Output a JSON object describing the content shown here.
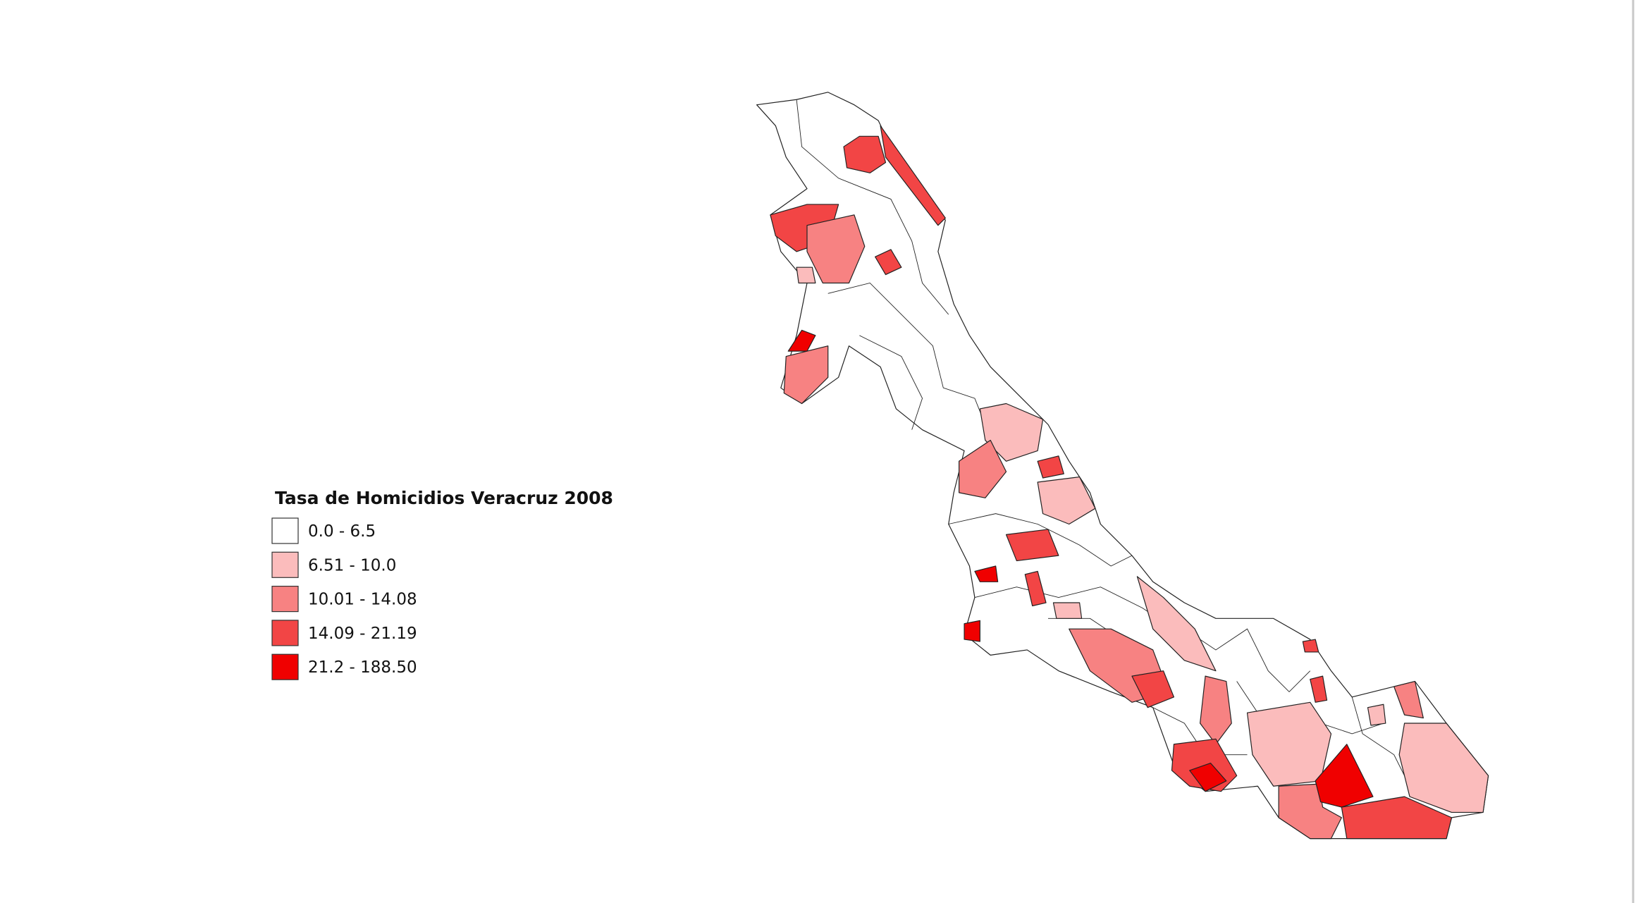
{
  "legend": {
    "title": "Tasa de Homicidios Veracruz 2008",
    "items": [
      {
        "label": "0.0 - 6.5",
        "color": "#ffffff"
      },
      {
        "label": "6.51 - 10.0",
        "color": "#fbbcbc"
      },
      {
        "label": "10.01 - 14.08",
        "color": "#f78282"
      },
      {
        "label": "14.09 - 21.19",
        "color": "#f24545"
      },
      {
        "label": "21.2 - 188.50",
        "color": "#f00000"
      }
    ]
  }
}
